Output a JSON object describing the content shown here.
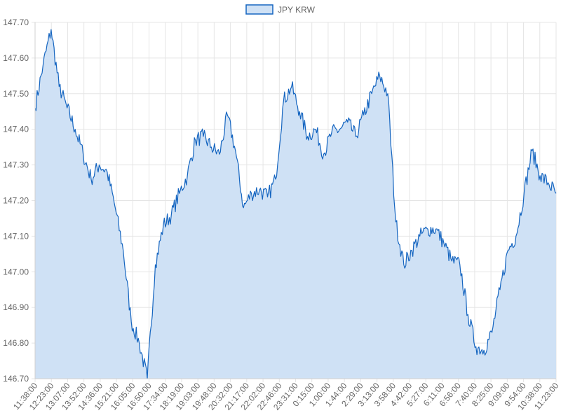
{
  "chart_data": {
    "type": "area",
    "title": "",
    "xlabel": "",
    "ylabel": "",
    "legend": {
      "position": "top",
      "entries": [
        {
          "name": "JPY KRW",
          "fill_color": "#cfe1f5",
          "border_color": "#1565c0"
        }
      ]
    },
    "grid": true,
    "ylim": [
      146.7,
      147.7
    ],
    "y_ticks": [
      "147.70",
      "147.60",
      "147.50",
      "147.40",
      "147.30",
      "147.20",
      "147.10",
      "147.00",
      "146.90",
      "146.80",
      "146.70"
    ],
    "x_ticks": [
      "11:38:00",
      "12:23:00",
      "13:07:00",
      "13:52:00",
      "14:36:00",
      "15:21:00",
      "16:05:00",
      "16:50:00",
      "17:34:00",
      "18:19:00",
      "19:03:00",
      "19:48:00",
      "20:32:00",
      "21:17:00",
      "22:02:00",
      "22:46:00",
      "23:31:00",
      "0:15:00",
      "1:00:00",
      "1:44:00",
      "2:29:00",
      "3:13:00",
      "3:58:00",
      "4:42:00",
      "5:27:00",
      "6:11:00",
      "6:56:00",
      "7:40:00",
      "8:25:00",
      "9:09:00",
      "9:54:00",
      "10:38:00",
      "11:23:00"
    ],
    "series": [
      {
        "name": "JPY KRW",
        "line_color": "#1565c0",
        "fill_color": "#cfe1f5",
        "x": [
          "11:38:00",
          "12:00:00",
          "12:23:00",
          "12:45:00",
          "13:07:00",
          "13:30:00",
          "13:52:00",
          "14:14:00",
          "14:36:00",
          "14:59:00",
          "15:21:00",
          "15:43:00",
          "16:05:00",
          "16:28:00",
          "16:50:00",
          "17:12:00",
          "17:34:00",
          "17:57:00",
          "18:19:00",
          "18:41:00",
          "19:03:00",
          "19:26:00",
          "19:48:00",
          "20:10:00",
          "20:32:00",
          "20:55:00",
          "21:17:00",
          "21:39:00",
          "22:02:00",
          "22:24:00",
          "22:46:00",
          "23:09:00",
          "23:31:00",
          "23:53:00",
          "0:15:00",
          "0:38:00",
          "1:00:00",
          "1:22:00",
          "1:44:00",
          "2:07:00",
          "2:29:00",
          "2:51:00",
          "3:13:00",
          "3:36:00",
          "3:58:00",
          "4:20:00",
          "4:42:00",
          "5:05:00",
          "5:27:00",
          "5:49:00",
          "6:11:00",
          "6:34:00",
          "6:56:00",
          "7:18:00",
          "7:40:00",
          "8:03:00",
          "8:25:00",
          "8:47:00",
          "9:09:00",
          "9:32:00",
          "9:54:00",
          "10:16:00",
          "10:38:00",
          "11:01:00",
          "11:23:00",
          "11:30:00"
        ],
        "values": [
          147.46,
          147.58,
          147.68,
          147.52,
          147.46,
          147.4,
          147.33,
          147.26,
          147.3,
          147.28,
          147.18,
          147.06,
          146.86,
          146.8,
          146.7,
          147.02,
          147.13,
          147.16,
          147.22,
          147.27,
          147.37,
          147.38,
          147.35,
          147.33,
          147.44,
          147.34,
          147.18,
          147.22,
          147.23,
          147.21,
          147.26,
          147.48,
          147.52,
          147.45,
          147.38,
          147.4,
          147.33,
          147.39,
          147.4,
          147.42,
          147.38,
          147.44,
          147.5,
          147.55,
          147.5,
          147.14,
          147.02,
          147.06,
          147.1,
          147.12,
          147.12,
          147.08,
          147.03,
          147.02,
          146.88,
          146.79,
          146.78,
          146.83,
          146.95,
          147.06,
          147.1,
          147.22,
          147.34,
          147.27,
          147.25,
          147.22
        ]
      }
    ]
  }
}
